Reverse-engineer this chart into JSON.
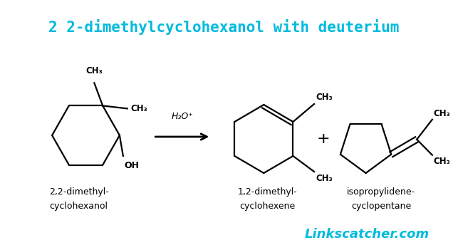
{
  "title": "2 2-dimethylcyclohexanol with deuterium",
  "title_color": "#00BBDD",
  "title_fontsize": 15,
  "background_color": "#FFFFFF",
  "text_color": "#000000",
  "label1_line1": "2,2-dimethyl-",
  "label1_line2": "cyclohexanol",
  "label2": "H₃O⁺",
  "label3_line1": "1,2-dimethyl-",
  "label3_line2": "cyclohexene",
  "label4": "+",
  "label5_line1": "isopropylidene-",
  "label5_line2": "cyclopentane",
  "watermark": "Linkscatcher.com",
  "watermark_color": "#00BBDD",
  "watermark_fontsize": 13,
  "ch3_label": "CH₃",
  "oh_label": "OH"
}
